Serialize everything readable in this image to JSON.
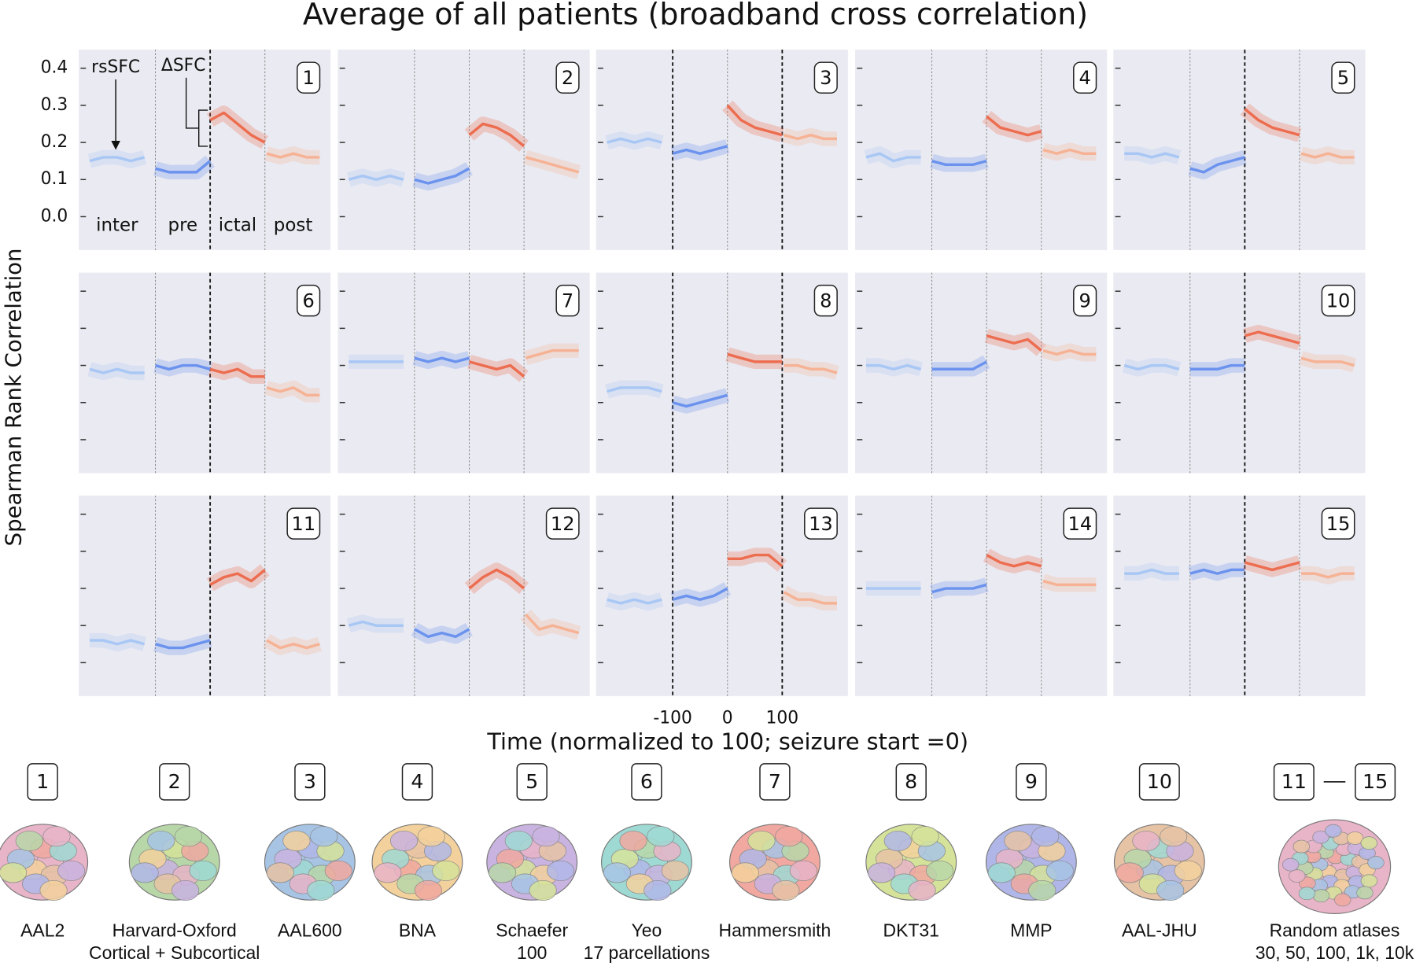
{
  "chart_data": {
    "type": "line",
    "title": "Average of all patients (broadband cross correlation)",
    "xlabel": "Time (normalized to 100; seizure start =0)",
    "ylabel": "Spearman Rank Correlation",
    "xlim": [
      -240,
      220
    ],
    "ylim": [
      -0.09,
      0.45
    ],
    "xticks": [
      -100,
      0,
      100
    ],
    "yticks": [
      {
        "value": 0,
        "label": "0.0"
      },
      0.1,
      0.2,
      0.3,
      0.4
    ],
    "vlines": [
      -100,
      0,
      100
    ],
    "segments": [
      {
        "name": "inter",
        "color": "#a9c7f4",
        "x": [
          -220,
          -195,
          -170,
          -145,
          -120
        ]
      },
      {
        "name": "pre",
        "color": "#6b93ee",
        "x": [
          -100,
          -75,
          -50,
          -25,
          0
        ]
      },
      {
        "name": "ictal",
        "color": "#ec6d4f",
        "x": [
          0,
          25,
          50,
          75,
          100
        ]
      },
      {
        "name": "post",
        "color": "#f6b294",
        "x": [
          103,
          128,
          152,
          176,
          200
        ]
      }
    ],
    "annotations": [
      "rsSFC",
      "ΔSFC"
    ],
    "panels": [
      {
        "label": "1",
        "strong_vlines": [
          0
        ],
        "series": [
          {
            "values": [
              0.15,
              0.16,
              0.16,
              0.15,
              0.16
            ]
          },
          {
            "values": [
              0.13,
              0.12,
              0.12,
              0.12,
              0.15
            ]
          },
          {
            "values": [
              0.26,
              0.28,
              0.25,
              0.22,
              0.2
            ]
          },
          {
            "values": [
              0.17,
              0.16,
              0.17,
              0.16,
              0.16
            ]
          }
        ]
      },
      {
        "label": "2",
        "strong_vlines": [],
        "series": [
          {
            "values": [
              0.1,
              0.11,
              0.1,
              0.11,
              0.1
            ]
          },
          {
            "values": [
              0.1,
              0.09,
              0.1,
              0.11,
              0.13
            ]
          },
          {
            "values": [
              0.22,
              0.25,
              0.24,
              0.22,
              0.19
            ]
          },
          {
            "values": [
              0.16,
              0.15,
              0.14,
              0.13,
              0.12
            ]
          }
        ]
      },
      {
        "label": "3",
        "strong_vlines": [
          -100,
          100
        ],
        "series": [
          {
            "values": [
              0.2,
              0.21,
              0.2,
              0.21,
              0.2
            ]
          },
          {
            "values": [
              0.17,
              0.18,
              0.17,
              0.18,
              0.19
            ]
          },
          {
            "values": [
              0.3,
              0.26,
              0.24,
              0.23,
              0.22
            ]
          },
          {
            "values": [
              0.22,
              0.21,
              0.22,
              0.21,
              0.21
            ]
          }
        ]
      },
      {
        "label": "4",
        "strong_vlines": [],
        "series": [
          {
            "values": [
              0.16,
              0.17,
              0.15,
              0.16,
              0.16
            ]
          },
          {
            "values": [
              0.15,
              0.14,
              0.14,
              0.14,
              0.15
            ]
          },
          {
            "values": [
              0.27,
              0.24,
              0.23,
              0.22,
              0.23
            ]
          },
          {
            "values": [
              0.18,
              0.17,
              0.18,
              0.17,
              0.17
            ]
          }
        ]
      },
      {
        "label": "5",
        "strong_vlines": [
          0
        ],
        "series": [
          {
            "values": [
              0.17,
              0.17,
              0.16,
              0.17,
              0.16
            ]
          },
          {
            "values": [
              0.13,
              0.12,
              0.14,
              0.15,
              0.16
            ]
          },
          {
            "values": [
              0.29,
              0.26,
              0.24,
              0.23,
              0.22
            ]
          },
          {
            "values": [
              0.17,
              0.16,
              0.17,
              0.16,
              0.16
            ]
          }
        ]
      },
      {
        "label": "6",
        "strong_vlines": [
          0
        ],
        "series": [
          {
            "values": [
              0.19,
              0.18,
              0.19,
              0.18,
              0.18
            ]
          },
          {
            "values": [
              0.2,
              0.19,
              0.2,
              0.2,
              0.19
            ]
          },
          {
            "values": [
              0.19,
              0.18,
              0.19,
              0.17,
              0.17
            ]
          },
          {
            "values": [
              0.14,
              0.13,
              0.14,
              0.12,
              0.12
            ]
          }
        ]
      },
      {
        "label": "7",
        "strong_vlines": [],
        "series": [
          {
            "values": [
              0.21,
              0.21,
              0.21,
              0.21,
              0.21
            ]
          },
          {
            "values": [
              0.22,
              0.21,
              0.22,
              0.21,
              0.22
            ]
          },
          {
            "values": [
              0.21,
              0.2,
              0.19,
              0.2,
              0.17
            ]
          },
          {
            "values": [
              0.22,
              0.23,
              0.24,
              0.24,
              0.24
            ]
          }
        ]
      },
      {
        "label": "8",
        "strong_vlines": [
          -100,
          100
        ],
        "series": [
          {
            "values": [
              0.13,
              0.14,
              0.14,
              0.14,
              0.13
            ]
          },
          {
            "values": [
              0.1,
              0.09,
              0.1,
              0.11,
              0.12
            ]
          },
          {
            "values": [
              0.23,
              0.22,
              0.21,
              0.21,
              0.21
            ]
          },
          {
            "values": [
              0.2,
              0.2,
              0.19,
              0.19,
              0.18
            ]
          }
        ]
      },
      {
        "label": "9",
        "strong_vlines": [],
        "series": [
          {
            "values": [
              0.2,
              0.2,
              0.19,
              0.2,
              0.19
            ]
          },
          {
            "values": [
              0.19,
              0.19,
              0.19,
              0.19,
              0.21
            ]
          },
          {
            "values": [
              0.28,
              0.27,
              0.26,
              0.27,
              0.24
            ]
          },
          {
            "values": [
              0.24,
              0.23,
              0.24,
              0.23,
              0.23
            ]
          }
        ]
      },
      {
        "label": "10",
        "strong_vlines": [
          0
        ],
        "series": [
          {
            "values": [
              0.2,
              0.19,
              0.2,
              0.2,
              0.19
            ]
          },
          {
            "values": [
              0.19,
              0.19,
              0.19,
              0.2,
              0.2
            ]
          },
          {
            "values": [
              0.28,
              0.29,
              0.28,
              0.27,
              0.26
            ]
          },
          {
            "values": [
              0.22,
              0.21,
              0.21,
              0.21,
              0.2
            ]
          }
        ]
      },
      {
        "label": "11",
        "strong_vlines": [
          0
        ],
        "series": [
          {
            "values": [
              0.06,
              0.06,
              0.05,
              0.06,
              0.05
            ]
          },
          {
            "values": [
              0.05,
              0.04,
              0.04,
              0.05,
              0.06
            ]
          },
          {
            "values": [
              0.21,
              0.23,
              0.24,
              0.22,
              0.25
            ]
          },
          {
            "values": [
              0.06,
              0.04,
              0.05,
              0.04,
              0.05
            ]
          }
        ]
      },
      {
        "label": "12",
        "strong_vlines": [],
        "series": [
          {
            "values": [
              0.1,
              0.11,
              0.1,
              0.1,
              0.1
            ]
          },
          {
            "values": [
              0.09,
              0.07,
              0.08,
              0.07,
              0.09
            ]
          },
          {
            "values": [
              0.2,
              0.23,
              0.25,
              0.23,
              0.2
            ]
          },
          {
            "values": [
              0.13,
              0.09,
              0.1,
              0.09,
              0.08
            ]
          }
        ]
      },
      {
        "label": "13",
        "strong_vlines": [
          -100,
          100
        ],
        "series": [
          {
            "values": [
              0.17,
              0.16,
              0.17,
              0.16,
              0.17
            ]
          },
          {
            "values": [
              0.17,
              0.18,
              0.17,
              0.18,
              0.2
            ]
          },
          {
            "values": [
              0.28,
              0.28,
              0.29,
              0.29,
              0.26
            ]
          },
          {
            "values": [
              0.19,
              0.17,
              0.17,
              0.16,
              0.16
            ]
          }
        ]
      },
      {
        "label": "14",
        "strong_vlines": [],
        "series": [
          {
            "values": [
              0.2,
              0.2,
              0.2,
              0.2,
              0.2
            ]
          },
          {
            "values": [
              0.19,
              0.2,
              0.2,
              0.2,
              0.21
            ]
          },
          {
            "values": [
              0.29,
              0.27,
              0.26,
              0.27,
              0.26
            ]
          },
          {
            "values": [
              0.22,
              0.21,
              0.21,
              0.21,
              0.21
            ]
          }
        ]
      },
      {
        "label": "15",
        "strong_vlines": [
          0
        ],
        "series": [
          {
            "values": [
              0.24,
              0.24,
              0.25,
              0.24,
              0.24
            ]
          },
          {
            "values": [
              0.24,
              0.25,
              0.24,
              0.25,
              0.25
            ]
          },
          {
            "values": [
              0.27,
              0.26,
              0.25,
              0.26,
              0.27
            ]
          },
          {
            "values": [
              0.24,
              0.24,
              0.23,
              0.24,
              0.24
            ]
          }
        ]
      }
    ]
  },
  "atlases": [
    {
      "numbers": [
        "1"
      ],
      "lines": [
        "AAL2"
      ]
    },
    {
      "numbers": [
        "2"
      ],
      "lines": [
        "Harvard-Oxford",
        "Cortical + Subcortical"
      ]
    },
    {
      "numbers": [
        "3"
      ],
      "lines": [
        "AAL600"
      ]
    },
    {
      "numbers": [
        "4"
      ],
      "lines": [
        "BNA"
      ]
    },
    {
      "numbers": [
        "5"
      ],
      "lines": [
        "Schaefer",
        "100"
      ]
    },
    {
      "numbers": [
        "6"
      ],
      "lines": [
        "Yeo",
        "17 parcellations"
      ]
    },
    {
      "numbers": [
        "7"
      ],
      "lines": [
        "Hammersmith"
      ]
    },
    {
      "numbers": [
        "8"
      ],
      "lines": [
        "DKT31"
      ]
    },
    {
      "numbers": [
        "9"
      ],
      "lines": [
        "MMP"
      ]
    },
    {
      "numbers": [
        "10"
      ],
      "lines": [
        "AAL-JHU"
      ]
    },
    {
      "numbers": [
        "11",
        "15"
      ],
      "lines": [
        "Random atlases",
        "30, 50, 100, 1k, 10k"
      ]
    }
  ]
}
